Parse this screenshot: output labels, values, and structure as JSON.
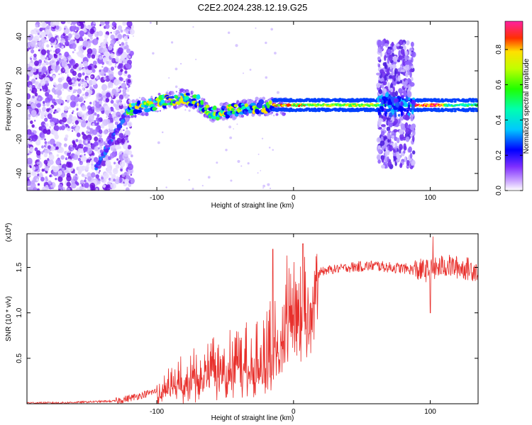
{
  "title": "C2E2.2024.238.12.19.G25",
  "chart_data": [
    {
      "type": "heatmap",
      "xlabel": "Height of straight line (km)",
      "ylabel": "Frequency (Hz)",
      "xlim": [
        -195,
        135
      ],
      "ylim": [
        -50,
        49
      ],
      "xticks": [
        -100,
        0,
        100
      ],
      "xtick_labels": [
        "-100",
        "0",
        "100"
      ],
      "yticks": [
        -40,
        -20,
        0,
        20,
        40
      ],
      "ytick_labels": [
        "-40",
        "-20",
        "0",
        "20",
        "40"
      ],
      "colorbar": {
        "label": "Normalized spectral amplitude",
        "range": [
          0,
          0.96
        ],
        "ticks": [
          0.0,
          0.2,
          0.4,
          0.6,
          0.8
        ],
        "tick_labels": [
          "0.0",
          "0.2",
          "0.4",
          "0.6",
          "0.8"
        ],
        "colormap": "rainbow (white-purple-blue-cyan-green-yellow-red-magenta)"
      },
      "features": [
        {
          "name": "broadband noise",
          "x_range": [
            -195,
            -122
          ],
          "freq_range": [
            -50,
            49
          ]
        },
        {
          "name": "diagonal streak",
          "x_range": [
            -145,
            -122
          ],
          "freq_range": [
            -38,
            -4
          ]
        },
        {
          "name": "main signal band",
          "x_range": [
            -122,
            135
          ],
          "freq_center": 0
        },
        {
          "name": "noise burst",
          "x_range": [
            62,
            88
          ],
          "freq_range": [
            -36,
            37
          ]
        }
      ],
      "band_centerline": {
        "x": [
          -122,
          -110,
          -100,
          -90,
          -80,
          -70,
          -62,
          -55,
          -45,
          -35,
          -25,
          -15,
          -5,
          0,
          5,
          15,
          30,
          60,
          90,
          135
        ],
        "y": [
          -3,
          -1,
          1,
          3,
          4,
          2,
          -4,
          -5,
          -3,
          -2,
          -1,
          -1,
          -1,
          0,
          0,
          0,
          0,
          0,
          0,
          0
        ]
      },
      "grid": false,
      "legend": "none"
    },
    {
      "type": "line",
      "xlabel": "Height of straight line (km)",
      "ylabel": "SNR (10 * v/v)",
      "y_multiplier": "(x10^4)",
      "xlim": [
        -195,
        135
      ],
      "ylim": [
        0,
        1.87
      ],
      "xticks": [
        -100,
        0,
        100
      ],
      "xtick_labels": [
        "-100",
        "0",
        "100"
      ],
      "yticks": [
        0.5,
        1.0,
        1.5
      ],
      "ytick_labels": [
        "0.5",
        "1.0",
        "1.5"
      ],
      "color": "#e8302c",
      "series": [
        {
          "x": [
            -195,
            -170,
            -150,
            -130,
            -120,
            -110,
            -100,
            -90,
            -80,
            -70,
            -60,
            -50,
            -40,
            -30,
            -20,
            -15,
            -10,
            -5,
            0,
            5,
            10,
            15,
            20,
            25,
            30,
            40,
            50,
            60,
            70,
            80,
            90,
            100,
            110,
            120,
            135
          ],
          "y": [
            0.01,
            0.01,
            0.02,
            0.03,
            0.06,
            0.1,
            0.14,
            0.2,
            0.27,
            0.33,
            0.38,
            0.42,
            0.45,
            0.5,
            0.55,
            0.62,
            0.75,
            0.9,
            1.05,
            1.12,
            1.15,
            1.35,
            1.45,
            1.47,
            1.48,
            1.5,
            1.51,
            1.52,
            1.5,
            1.49,
            1.47,
            1.46,
            1.52,
            1.5,
            1.47
          ]
        }
      ],
      "spikes": [
        {
          "x": -15,
          "y": 1.7
        },
        {
          "x": -5,
          "y": 1.63
        },
        {
          "x": 7,
          "y": 1.76
        },
        {
          "x": 100,
          "y": 1.0
        },
        {
          "x": 102,
          "y": 1.84
        }
      ],
      "grid": false,
      "legend": "none"
    }
  ]
}
